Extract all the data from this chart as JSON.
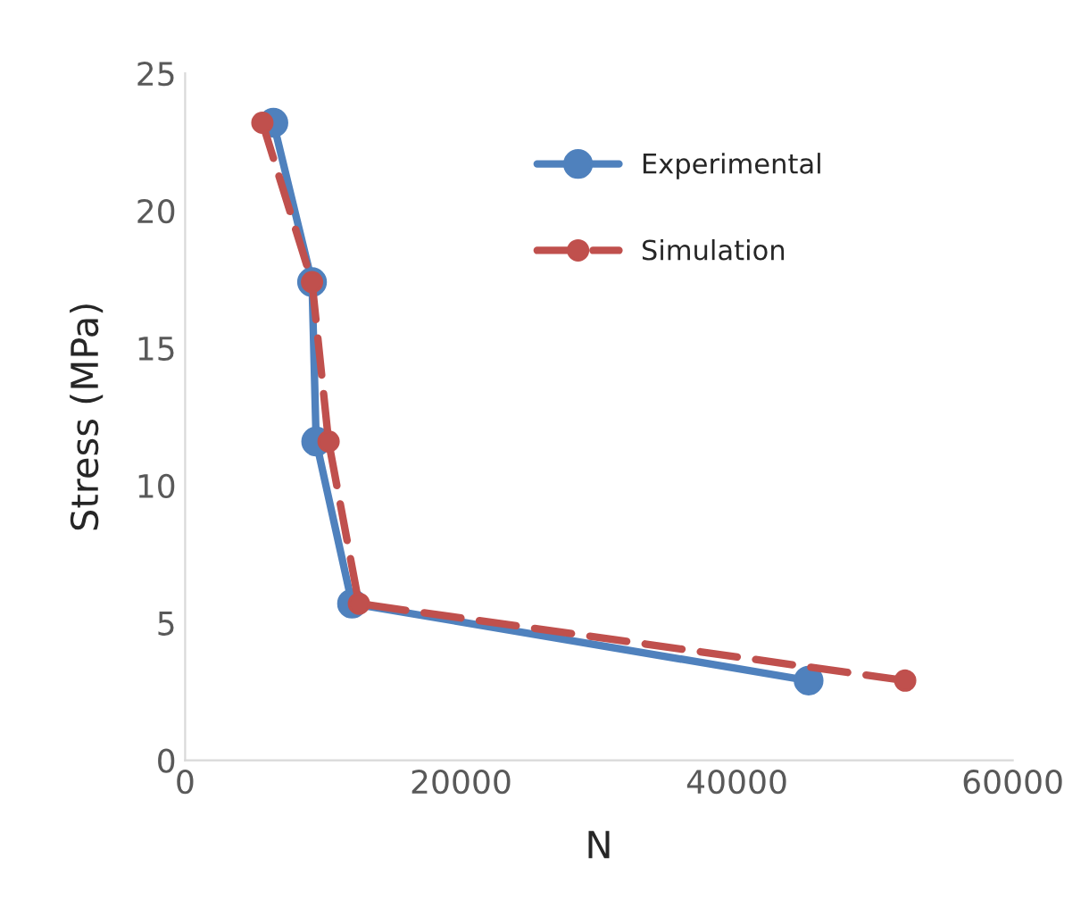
{
  "chart_data": {
    "type": "line",
    "xlabel": "N",
    "ylabel": "Stress (MPa)",
    "series": [
      {
        "name": "Experimental",
        "color": "#4f81bd",
        "x": [
          6400,
          9200,
          9500,
          12100,
          45200
        ],
        "values": [
          23.2,
          17.4,
          11.6,
          5.7,
          2.9
        ],
        "line_style": "solid"
      },
      {
        "name": "Simulation",
        "color": "#c0504d",
        "x": [
          5600,
          9200,
          10400,
          12600,
          52200
        ],
        "values": [
          23.2,
          17.4,
          11.6,
          5.7,
          2.9
        ],
        "line_style": "dashed"
      }
    ],
    "xlim": [
      0,
      60000
    ],
    "xticks": [
      0,
      20000,
      40000,
      60000
    ],
    "ylim": [
      0,
      25
    ],
    "yticks": [
      0,
      5,
      10,
      15,
      20,
      25
    ],
    "marker": "circle",
    "grid": false,
    "legend": "top right"
  }
}
